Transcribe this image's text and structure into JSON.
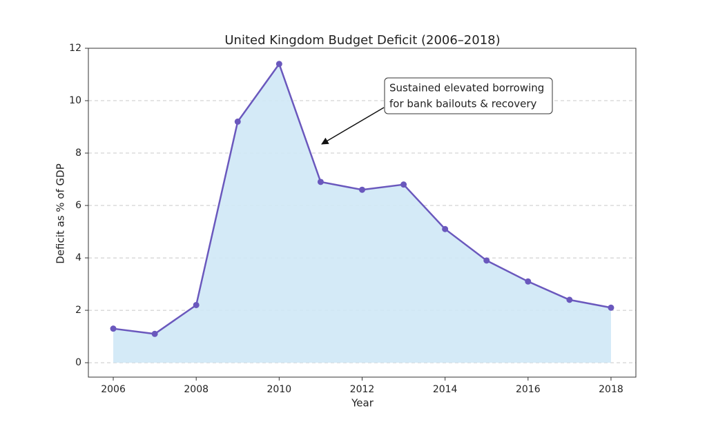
{
  "chart_data": {
    "type": "line",
    "title": "United Kingdom Budget Deficit (2006–2018)",
    "xlabel": "Year",
    "ylabel": "Deficit as % of GDP",
    "x": [
      2006,
      2007,
      2008,
      2009,
      2010,
      2011,
      2012,
      2013,
      2014,
      2015,
      2016,
      2017,
      2018
    ],
    "series": [
      {
        "name": "Deficit",
        "color": "#6a58bd",
        "fill": "#cfe8f6",
        "values": [
          1.3,
          1.1,
          2.2,
          9.2,
          11.4,
          6.9,
          6.6,
          6.8,
          5.1,
          3.9,
          3.1,
          2.4,
          2.1
        ]
      }
    ],
    "xlim": [
      2005.4,
      2018.6
    ],
    "ylim": [
      -0.55,
      12
    ],
    "xticks": [
      2006,
      2008,
      2010,
      2012,
      2014,
      2016,
      2018
    ],
    "yticks": [
      0,
      2,
      4,
      6,
      8,
      10,
      12
    ],
    "grid": true,
    "annotation": {
      "lines": [
        "Sustained elevated borrowing",
        "for bank bailouts & recovery"
      ]
    }
  }
}
